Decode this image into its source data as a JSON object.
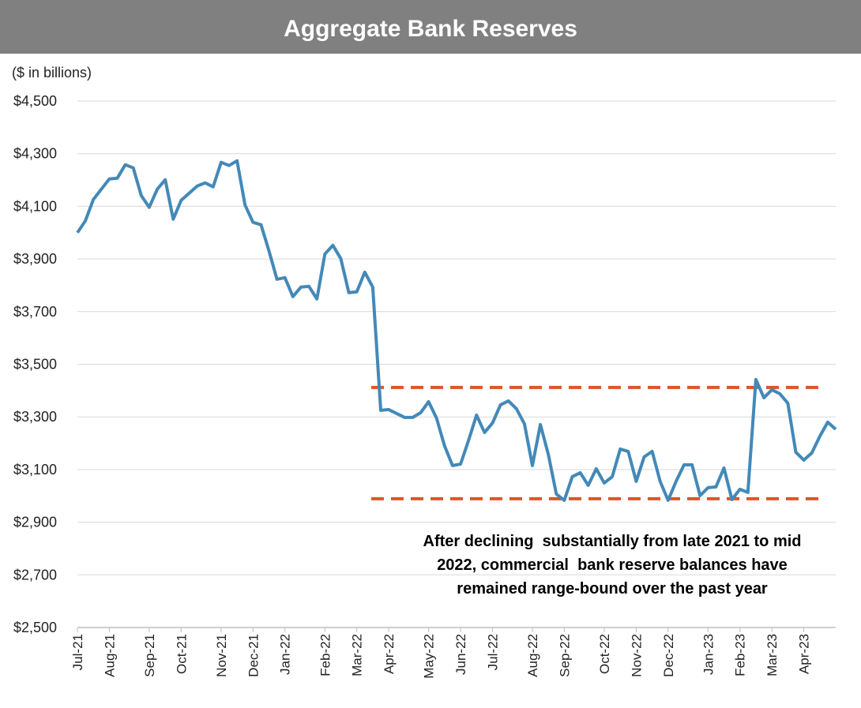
{
  "chart_data": {
    "type": "line",
    "title": "Aggregate Bank Reserves",
    "y_label": "($ in billions)",
    "categories": [
      "Jul-21",
      null,
      null,
      null,
      "Aug-21",
      null,
      null,
      null,
      null,
      "Sep-21",
      null,
      null,
      null,
      "Oct-21",
      null,
      null,
      null,
      null,
      "Nov-21",
      null,
      null,
      null,
      "Dec-21",
      null,
      null,
      null,
      "Jan-22",
      null,
      null,
      null,
      null,
      "Feb-22",
      null,
      null,
      null,
      "Mar-22",
      null,
      null,
      null,
      "Apr-22",
      null,
      null,
      null,
      null,
      "May-22",
      null,
      null,
      null,
      "Jun-22",
      null,
      null,
      null,
      "Jul-22",
      null,
      null,
      null,
      null,
      "Aug-22",
      null,
      null,
      null,
      "Sep-22",
      null,
      null,
      null,
      null,
      "Oct-22",
      null,
      null,
      null,
      "Nov-22",
      null,
      null,
      null,
      "Dec-22",
      null,
      null,
      null,
      null,
      "Jan-23",
      null,
      null,
      null,
      "Feb-23",
      null,
      null,
      null,
      "Mar-23",
      null,
      null,
      null,
      "Apr-23",
      null,
      null,
      null,
      null
    ],
    "series": [
      {
        "color": "#4389b8",
        "values": [
          4000,
          4045,
          4126,
          4165,
          4204,
          4207,
          4258,
          4246,
          4141,
          4096,
          4165,
          4201,
          4051,
          4123,
          4150,
          4177,
          4189,
          4174,
          4267,
          4255,
          4273,
          4105,
          4039,
          4030,
          3931,
          3823,
          3829,
          3757,
          3793,
          3796,
          3748,
          3919,
          3952,
          3901,
          3772,
          3775,
          3850,
          3793,
          3325,
          3328,
          3313,
          3298,
          3298,
          3316,
          3358,
          3295,
          3190,
          3115,
          3121,
          3211,
          3307,
          3241,
          3277,
          3346,
          3361,
          3331,
          3274,
          3115,
          3271,
          3157,
          3007,
          2983,
          3073,
          3088,
          3040,
          3103,
          3049,
          3073,
          3178,
          3169,
          3055,
          3148,
          3169,
          3055,
          2983,
          3055,
          3118,
          3118,
          3001,
          3031,
          3034,
          3106,
          2986,
          3025,
          3013,
          3442,
          3373,
          3403,
          3388,
          3352,
          3166,
          3136,
          3163,
          3226,
          3280,
          3253
        ]
      }
    ],
    "ylim": [
      2500,
      4500
    ],
    "yticks": [
      {
        "value": 2500,
        "label": "$2,500"
      },
      {
        "value": 2700,
        "label": "$2,700"
      },
      {
        "value": 2900,
        "label": "$2,900"
      },
      {
        "value": 3100,
        "label": "$3,100"
      },
      {
        "value": 3300,
        "label": "$3,300"
      },
      {
        "value": 3500,
        "label": "$3,500"
      },
      {
        "value": 3700,
        "label": "$3,700"
      },
      {
        "value": 3900,
        "label": "$3,900"
      },
      {
        "value": 4100,
        "label": "$4,100"
      },
      {
        "value": 4300,
        "label": "$4,300"
      },
      {
        "value": 4500,
        "label": "$4,500"
      }
    ],
    "grid": true,
    "reference_lines": [
      {
        "value": 3412,
        "color": "#e0532a"
      },
      {
        "value": 2989,
        "color": "#e0532a"
      }
    ],
    "annotation": [
      "After declining  substantially from late 2021 to mid",
      "2022, commercial  bank reserve balances have",
      "remained range-bound over the past year"
    ]
  }
}
